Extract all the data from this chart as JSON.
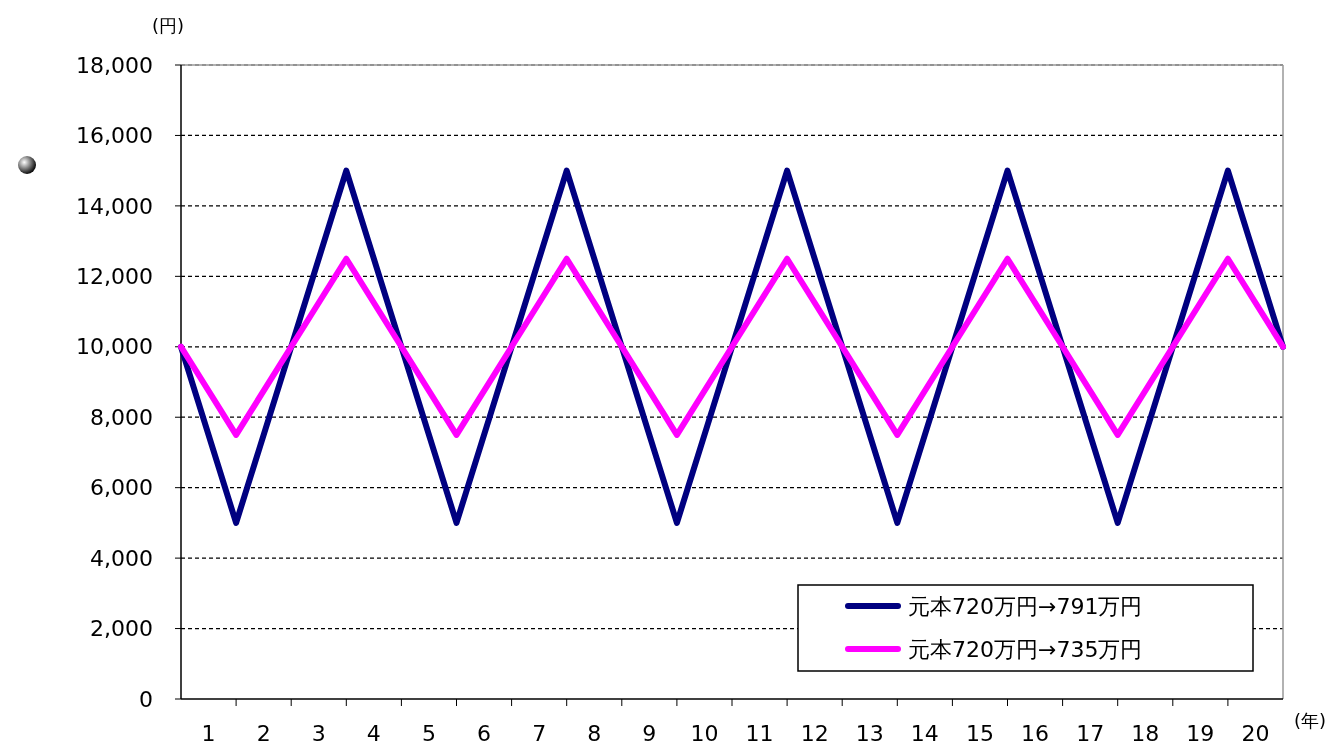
{
  "chart_data": {
    "type": "line",
    "xlabel": "(年)",
    "ylabel": "(円)",
    "x": [
      0,
      1,
      2,
      3,
      4,
      5,
      6,
      7,
      8,
      9,
      10,
      11,
      12,
      13,
      14,
      15,
      16,
      17,
      18,
      19,
      20
    ],
    "series": [
      {
        "name": "元本720万円→791万円",
        "color": "#000080",
        "values": [
          10000,
          5000,
          10000,
          15000,
          10000,
          5000,
          10000,
          15000,
          10000,
          5000,
          10000,
          15000,
          10000,
          5000,
          10000,
          15000,
          10000,
          5000,
          10000,
          15000,
          10000
        ]
      },
      {
        "name": "元本720万円→735万円",
        "color": "#ff00ff",
        "values": [
          10000,
          7500,
          10000,
          12500,
          10000,
          7500,
          10000,
          12500,
          10000,
          7500,
          10000,
          12500,
          10000,
          7500,
          10000,
          12500,
          10000,
          7500,
          10000,
          12500,
          10000
        ]
      }
    ],
    "xlim": [
      0,
      20
    ],
    "xticks": [
      {
        "value": 0.5,
        "label": "1"
      },
      {
        "value": 1,
        "label": null
      },
      {
        "value": 1.5,
        "label": "2"
      },
      {
        "value": 2,
        "label": null
      },
      {
        "value": 2.5,
        "label": "3"
      },
      {
        "value": 3,
        "label": null
      },
      {
        "value": 3.5,
        "label": "4"
      },
      {
        "value": 4,
        "label": null
      },
      {
        "value": 4.5,
        "label": "5"
      },
      {
        "value": 5,
        "label": null
      },
      {
        "value": 5.5,
        "label": "6"
      },
      {
        "value": 6,
        "label": null
      },
      {
        "value": 6.5,
        "label": "7"
      },
      {
        "value": 7,
        "label": null
      },
      {
        "value": 7.5,
        "label": "8"
      },
      {
        "value": 8,
        "label": null
      },
      {
        "value": 8.5,
        "label": "9"
      },
      {
        "value": 9,
        "label": null
      },
      {
        "value": 9.5,
        "label": "10"
      },
      {
        "value": 10,
        "label": null
      },
      {
        "value": 10.5,
        "label": "11"
      },
      {
        "value": 11,
        "label": null
      },
      {
        "value": 11.5,
        "label": "12"
      },
      {
        "value": 12,
        "label": null
      },
      {
        "value": 12.5,
        "label": "13"
      },
      {
        "value": 13,
        "label": null
      },
      {
        "value": 13.5,
        "label": "14"
      },
      {
        "value": 14,
        "label": null
      },
      {
        "value": 14.5,
        "label": "15"
      },
      {
        "value": 15,
        "label": null
      },
      {
        "value": 15.5,
        "label": "16"
      },
      {
        "value": 16,
        "label": null
      },
      {
        "value": 16.5,
        "label": "17"
      },
      {
        "value": 17,
        "label": null
      },
      {
        "value": 17.5,
        "label": "18"
      },
      {
        "value": 18,
        "label": null
      },
      {
        "value": 18.5,
        "label": "19"
      },
      {
        "value": 19,
        "label": null
      },
      {
        "value": 19.5,
        "label": "20"
      }
    ],
    "ylim": [
      0,
      18000
    ],
    "yticks": [
      {
        "value": 0,
        "label": "0"
      },
      {
        "value": 2000,
        "label": "2,000"
      },
      {
        "value": 4000,
        "label": "4,000"
      },
      {
        "value": 6000,
        "label": "6,000"
      },
      {
        "value": 8000,
        "label": "8,000"
      },
      {
        "value": 10000,
        "label": "10,000"
      },
      {
        "value": 12000,
        "label": "12,000"
      },
      {
        "value": 14000,
        "label": "14,000"
      },
      {
        "value": 16000,
        "label": "16,000"
      },
      {
        "value": 18000,
        "label": "18,000"
      }
    ],
    "grid": "y",
    "legend": "bottom right",
    "marker": "none",
    "line_style": "solid"
  }
}
